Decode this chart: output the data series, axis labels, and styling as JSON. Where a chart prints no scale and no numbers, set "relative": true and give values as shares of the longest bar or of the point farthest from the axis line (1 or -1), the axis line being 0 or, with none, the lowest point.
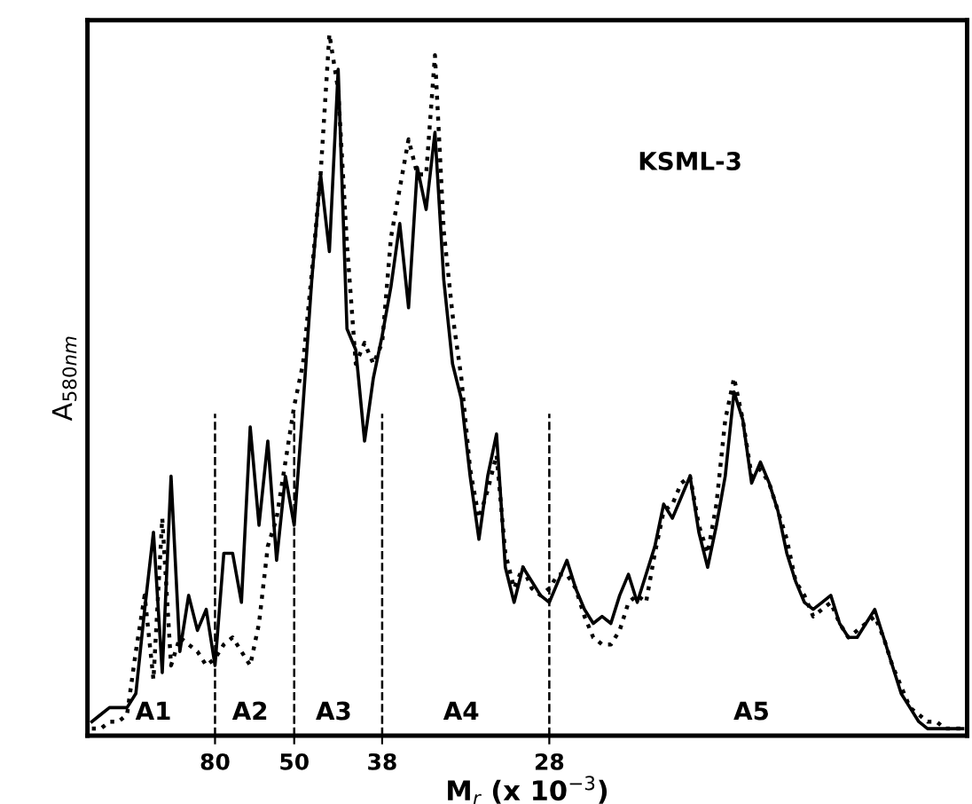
{
  "chart_data": {
    "type": "line",
    "relative": true,
    "xlabel": "M$_{r}$ (x 10$^{−3}$)",
    "ylabel": "A$_{580nm}$",
    "annotations": [
      "KSML-3",
      "A1",
      "A2",
      "A3",
      "A4",
      "A5"
    ],
    "categories": [
      null,
      null,
      null,
      null,
      null,
      null,
      null,
      null,
      null,
      null,
      null,
      null,
      null,
      null,
      "80",
      null,
      null,
      null,
      null,
      null,
      null,
      null,
      null,
      "50",
      null,
      null,
      null,
      null,
      null,
      null,
      null,
      null,
      null,
      "38",
      null,
      null,
      null,
      null,
      null,
      null,
      null,
      null,
      null,
      null,
      null,
      null,
      null,
      null,
      null,
      null,
      null,
      null,
      "28",
      null,
      null,
      null,
      null,
      null,
      null,
      null,
      null,
      null,
      null,
      null,
      null,
      null,
      null,
      null,
      null,
      null,
      null,
      null,
      null,
      null,
      null,
      null,
      null,
      null,
      null,
      null,
      null,
      null,
      null,
      null,
      null,
      null,
      null,
      null,
      null,
      null,
      null,
      null,
      null,
      null,
      null,
      null,
      null,
      null,
      null,
      null
    ],
    "grid": false,
    "legend": false,
    "ref_lines": [
      {
        "axis": "x",
        "value": "80",
        "line_style": "dashed"
      },
      {
        "axis": "x",
        "value": "50",
        "line_style": "dashed"
      },
      {
        "axis": "x",
        "value": "38",
        "line_style": "dashed"
      },
      {
        "axis": "x",
        "value": "28",
        "line_style": "dashed"
      }
    ],
    "series": [
      {
        "color": "#000000",
        "line_style": "solid",
        "values": [
          0.02,
          0.03,
          0.04,
          0.04,
          0.04,
          0.06,
          0.18,
          0.29,
          0.09,
          0.37,
          0.12,
          0.2,
          0.15,
          0.18,
          0.1,
          0.26,
          0.26,
          0.19,
          0.44,
          0.3,
          0.42,
          0.25,
          0.37,
          0.3,
          0.47,
          0.65,
          0.8,
          0.69,
          0.95,
          0.58,
          0.55,
          0.42,
          0.51,
          0.57,
          0.64,
          0.73,
          0.61,
          0.81,
          0.75,
          0.86,
          0.65,
          0.53,
          0.48,
          0.37,
          0.28,
          0.37,
          0.43,
          0.24,
          0.19,
          0.24,
          0.22,
          0.2,
          0.19,
          0.22,
          0.25,
          0.21,
          0.18,
          0.16,
          0.17,
          0.16,
          0.2,
          0.23,
          0.19,
          0.23,
          0.27,
          0.33,
          0.31,
          0.34,
          0.37,
          0.29,
          0.24,
          0.3,
          0.37,
          0.49,
          0.45,
          0.36,
          0.39,
          0.36,
          0.32,
          0.26,
          0.22,
          0.19,
          0.18,
          0.19,
          0.2,
          0.16,
          0.14,
          0.14,
          0.16,
          0.18,
          0.14,
          0.1,
          0.06,
          0.04,
          0.02,
          0.01,
          0.01,
          0.01,
          0.01,
          0.01
        ]
      },
      {
        "color": "#000000",
        "line_style": "dotted",
        "values": [
          0.01,
          0.01,
          0.02,
          0.02,
          0.03,
          0.12,
          0.2,
          0.08,
          0.31,
          0.1,
          0.14,
          0.13,
          0.12,
          0.1,
          0.11,
          0.13,
          0.14,
          0.12,
          0.1,
          0.16,
          0.27,
          0.31,
          0.39,
          0.47,
          0.53,
          0.66,
          0.8,
          1.0,
          0.92,
          0.7,
          0.53,
          0.56,
          0.53,
          0.56,
          0.71,
          0.78,
          0.85,
          0.8,
          0.8,
          0.97,
          0.72,
          0.6,
          0.51,
          0.38,
          0.31,
          0.35,
          0.4,
          0.26,
          0.21,
          0.24,
          0.21,
          0.2,
          0.21,
          0.23,
          0.23,
          0.21,
          0.17,
          0.14,
          0.13,
          0.13,
          0.15,
          0.19,
          0.2,
          0.19,
          0.26,
          0.32,
          0.33,
          0.36,
          0.37,
          0.3,
          0.26,
          0.33,
          0.45,
          0.51,
          0.45,
          0.37,
          0.38,
          0.36,
          0.32,
          0.28,
          0.22,
          0.2,
          0.17,
          0.18,
          0.19,
          0.16,
          0.14,
          0.15,
          0.16,
          0.17,
          0.14,
          0.1,
          0.07,
          0.04,
          0.03,
          0.02,
          0.02,
          0.01,
          0.01,
          0.01
        ]
      }
    ]
  }
}
